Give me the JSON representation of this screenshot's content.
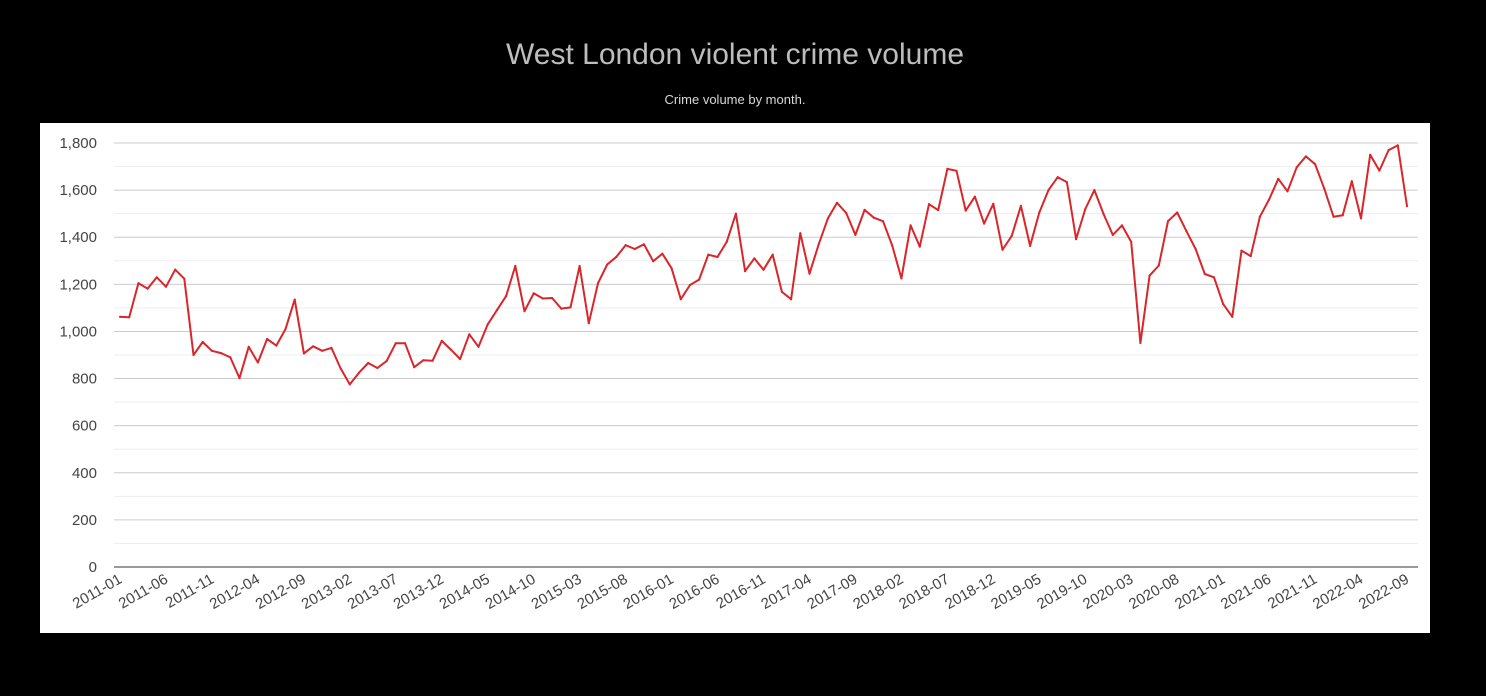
{
  "title": "West London violent crime volume",
  "subtitle": "Crime volume by month.",
  "colors": {
    "page_background": "#000000",
    "panel_background": "#ffffff",
    "line": "#d9262b",
    "gridline_major": "#cccccc",
    "gridline_minor": "#eeeeee",
    "tick_label": "#444444"
  },
  "chart_data": {
    "type": "line",
    "title": "West London violent crime volume",
    "subtitle": "Crime volume by month.",
    "x_tick_labels": [
      "2011-01",
      "2011-06",
      "2011-11",
      "2012-04",
      "2012-09",
      "2013-02",
      "2013-07",
      "2013-12",
      "2014-05",
      "2014-10",
      "2015-03",
      "2015-08",
      "2016-01",
      "2016-06",
      "2016-11",
      "2017-04",
      "2017-09",
      "2018-02",
      "2018-07",
      "2018-12",
      "2019-05",
      "2019-10",
      "2020-03",
      "2020-08",
      "2021-01",
      "2021-06",
      "2021-11",
      "2022-04",
      "2022-09"
    ],
    "y_tick_labels": [
      "0",
      "200",
      "400",
      "600",
      "800",
      "1,000",
      "1,200",
      "1,400",
      "1,600",
      "1,800"
    ],
    "ylim": [
      0,
      1800
    ],
    "grid": true,
    "legend": "none",
    "x": [
      "2011-01",
      "2011-02",
      "2011-03",
      "2011-04",
      "2011-05",
      "2011-06",
      "2011-07",
      "2011-08",
      "2011-09",
      "2011-10",
      "2011-11",
      "2011-12",
      "2012-01",
      "2012-02",
      "2012-03",
      "2012-04",
      "2012-05",
      "2012-06",
      "2012-07",
      "2012-08",
      "2012-09",
      "2012-10",
      "2012-11",
      "2012-12",
      "2013-01",
      "2013-02",
      "2013-03",
      "2013-04",
      "2013-05",
      "2013-06",
      "2013-07",
      "2013-08",
      "2013-09",
      "2013-10",
      "2013-11",
      "2013-12",
      "2014-01",
      "2014-02",
      "2014-03",
      "2014-04",
      "2014-05",
      "2014-06",
      "2014-07",
      "2014-08",
      "2014-09",
      "2014-10",
      "2014-11",
      "2014-12",
      "2015-01",
      "2015-02",
      "2015-03",
      "2015-04",
      "2015-05",
      "2015-06",
      "2015-07",
      "2015-08",
      "2015-09",
      "2015-10",
      "2015-11",
      "2015-12",
      "2016-01",
      "2016-02",
      "2016-03",
      "2016-04",
      "2016-05",
      "2016-06",
      "2016-07",
      "2016-08",
      "2016-09",
      "2016-10",
      "2016-11",
      "2016-12",
      "2017-01",
      "2017-02",
      "2017-03",
      "2017-04",
      "2017-05",
      "2017-06",
      "2017-07",
      "2017-08",
      "2017-09",
      "2017-10",
      "2017-11",
      "2017-12",
      "2018-01",
      "2018-02",
      "2018-03",
      "2018-04",
      "2018-05",
      "2018-06",
      "2018-07",
      "2018-08",
      "2018-09",
      "2018-10",
      "2018-11",
      "2018-12",
      "2019-01",
      "2019-02",
      "2019-03",
      "2019-04",
      "2019-05",
      "2019-06",
      "2019-07",
      "2019-08",
      "2019-09",
      "2019-10",
      "2019-11",
      "2019-12",
      "2020-01",
      "2020-02",
      "2020-03",
      "2020-04",
      "2020-05",
      "2020-06",
      "2020-07",
      "2020-08",
      "2020-09",
      "2020-10",
      "2020-11",
      "2020-12",
      "2021-01",
      "2021-02",
      "2021-03",
      "2021-04",
      "2021-05",
      "2021-06",
      "2021-07",
      "2021-08",
      "2021-09",
      "2021-10",
      "2021-11",
      "2021-12",
      "2022-01",
      "2022-02",
      "2022-03",
      "2022-04",
      "2022-05",
      "2022-06",
      "2022-07",
      "2022-08",
      "2022-09"
    ],
    "series": [
      {
        "values": [
          1062,
          1060,
          1205,
          1182,
          1230,
          1190,
          1262,
          1224,
          900,
          955,
          918,
          908,
          890,
          802,
          935,
          868,
          968,
          940,
          1010,
          1135,
          907,
          937,
          918,
          930,
          843,
          775,
          825,
          866,
          845,
          874,
          950,
          950,
          848,
          878,
          876,
          960,
          923,
          883,
          988,
          935,
          1030,
          1090,
          1150,
          1278,
          1086,
          1162,
          1140,
          1142,
          1097,
          1102,
          1278,
          1035,
          1205,
          1284,
          1317,
          1366,
          1350,
          1370,
          1298,
          1330,
          1268,
          1137,
          1197,
          1220,
          1326,
          1316,
          1380,
          1500,
          1256,
          1310,
          1262,
          1326,
          1168,
          1137,
          1417,
          1245,
          1370,
          1480,
          1546,
          1503,
          1410,
          1516,
          1483,
          1468,
          1365,
          1225,
          1450,
          1360,
          1540,
          1515,
          1690,
          1682,
          1513,
          1572,
          1458,
          1542,
          1347,
          1405,
          1533,
          1363,
          1505,
          1600,
          1655,
          1634,
          1392,
          1520,
          1600,
          1498,
          1410,
          1450,
          1380,
          951,
          1237,
          1280,
          1468,
          1505,
          1426,
          1350,
          1244,
          1230,
          1117,
          1062,
          1343,
          1320,
          1487,
          1560,
          1648,
          1595,
          1697,
          1743,
          1710,
          1606,
          1487,
          1493,
          1638,
          1480,
          1750,
          1683,
          1770,
          1790,
          1532
        ]
      }
    ]
  }
}
